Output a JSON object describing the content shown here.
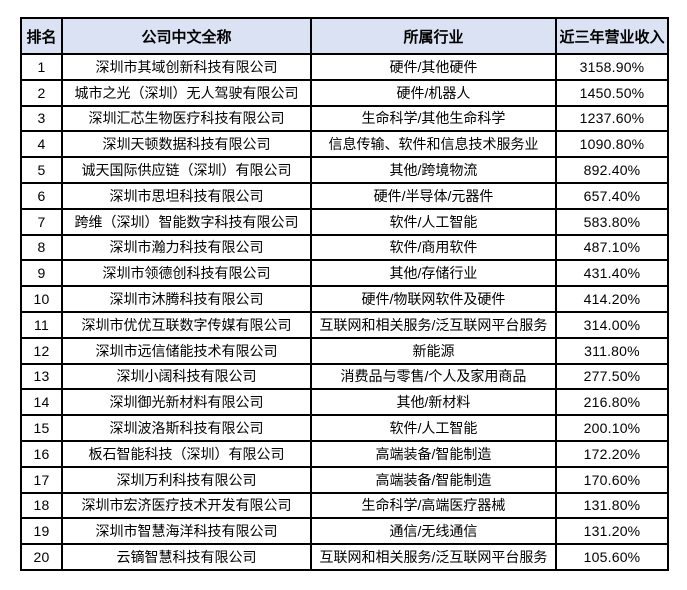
{
  "colors": {
    "header_bg": "#dbe2f3",
    "border": "#000000",
    "text": "#000000",
    "page_bg": "#ffffff"
  },
  "table": {
    "headers": [
      "排名",
      "公司中文全称",
      "所属行业",
      "近三年营业收入"
    ],
    "rows": [
      {
        "rank": "1",
        "company": "深圳市其域创新科技有限公司",
        "industry": "硬件/其他硬件",
        "revenue": "3158.90%"
      },
      {
        "rank": "2",
        "company": "城市之光（深圳）无人驾驶有限公司",
        "industry": "硬件/机器人",
        "revenue": "1450.50%"
      },
      {
        "rank": "3",
        "company": "深圳汇芯生物医疗科技有限公司",
        "industry": "生命科学/其他生命科学",
        "revenue": "1237.60%"
      },
      {
        "rank": "4",
        "company": "深圳天顿数据科技有限公司",
        "industry": "信息传输、软件和信息技术服务业",
        "revenue": "1090.80%"
      },
      {
        "rank": "5",
        "company": "诚天国际供应链（深圳）有限公司",
        "industry": "其他/跨境物流",
        "revenue": "892.40%"
      },
      {
        "rank": "6",
        "company": "深圳市思坦科技有限公司",
        "industry": "硬件/半导体/元器件",
        "revenue": "657.40%"
      },
      {
        "rank": "7",
        "company": "跨维（深圳）智能数字科技有限公司",
        "industry": "软件/人工智能",
        "revenue": "583.80%"
      },
      {
        "rank": "8",
        "company": "深圳市瀚力科技有限公司",
        "industry": "软件/商用软件",
        "revenue": "487.10%"
      },
      {
        "rank": "9",
        "company": "深圳市领德创科技有限公司",
        "industry": "其他/存储行业",
        "revenue": "431.40%"
      },
      {
        "rank": "10",
        "company": "深圳市沐腾科技有限公司",
        "industry": "硬件/物联网软件及硬件",
        "revenue": "414.20%"
      },
      {
        "rank": "11",
        "company": "深圳市优优互联数字传媒有限公司",
        "industry": "互联网和相关服务/泛互联网平台服务",
        "revenue": "314.00%"
      },
      {
        "rank": "12",
        "company": "深圳市远信储能技术有限公司",
        "industry": "新能源",
        "revenue": "311.80%"
      },
      {
        "rank": "13",
        "company": "深圳小阔科技有限公司",
        "industry": "消费品与零售/个人及家用商品",
        "revenue": "277.50%"
      },
      {
        "rank": "14",
        "company": "深圳御光新材料有限公司",
        "industry": "其他/新材料",
        "revenue": "216.80%"
      },
      {
        "rank": "15",
        "company": "深圳波洛斯科技有限公司",
        "industry": "软件/人工智能",
        "revenue": "200.10%"
      },
      {
        "rank": "16",
        "company": "板石智能科技（深圳）有限公司",
        "industry": "高端装备/智能制造",
        "revenue": "172.20%"
      },
      {
        "rank": "17",
        "company": "深圳万利科技有限公司",
        "industry": "高端装备/智能制造",
        "revenue": "170.60%"
      },
      {
        "rank": "18",
        "company": "深圳市宏济医疗技术开发有限公司",
        "industry": "生命科学/高端医疗器械",
        "revenue": "131.80%"
      },
      {
        "rank": "19",
        "company": "深圳市智慧海洋科技有限公司",
        "industry": "通信/无线通信",
        "revenue": "131.20%"
      },
      {
        "rank": "20",
        "company": "云镝智慧科技有限公司",
        "industry": "互联网和相关服务/泛互联网平台服务",
        "revenue": "105.60%"
      }
    ]
  }
}
